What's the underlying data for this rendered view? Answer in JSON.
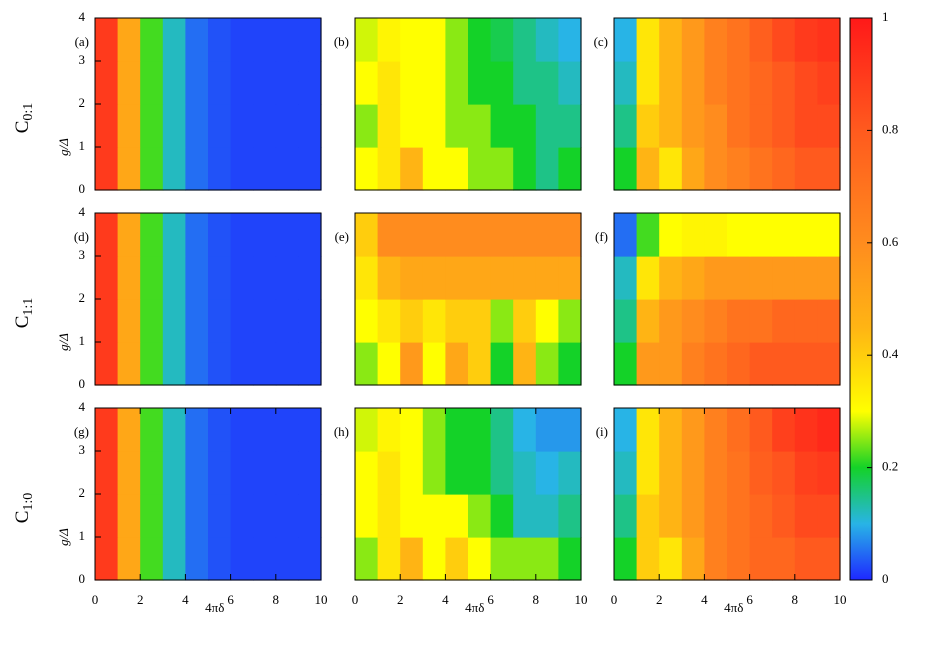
{
  "chart_data": [
    {
      "type": "heatmap",
      "panel_label": "(a)",
      "xlim": [
        0,
        10
      ],
      "ylim": [
        0,
        4
      ],
      "yticks": [
        0,
        1,
        2,
        3,
        4
      ],
      "ylabel": "g/Δ",
      "x": [
        0.5,
        1.5,
        2.5,
        3.5,
        4.5,
        5.5,
        6.5,
        7.5,
        8.5,
        9.5
      ],
      "y": [
        0.5,
        1.5,
        2.5,
        3.5
      ],
      "z": [
        [
          0.9,
          0.5,
          0.22,
          0.12,
          0.05,
          0.03,
          0.02,
          0.02,
          0.02,
          0.02
        ],
        [
          0.9,
          0.5,
          0.22,
          0.12,
          0.05,
          0.03,
          0.02,
          0.02,
          0.02,
          0.02
        ],
        [
          0.9,
          0.5,
          0.22,
          0.12,
          0.05,
          0.03,
          0.02,
          0.02,
          0.02,
          0.02
        ],
        [
          0.9,
          0.5,
          0.22,
          0.12,
          0.05,
          0.03,
          0.02,
          0.02,
          0.02,
          0.02
        ]
      ]
    },
    {
      "type": "heatmap",
      "panel_label": "(b)",
      "xlim": [
        0,
        10
      ],
      "ylim": [
        0,
        4
      ],
      "x": [
        0.5,
        1.5,
        2.5,
        3.5,
        4.5,
        5.5,
        6.5,
        7.5,
        8.5,
        9.5
      ],
      "y": [
        0.5,
        1.5,
        2.5,
        3.5
      ],
      "z": [
        [
          0.3,
          0.35,
          0.45,
          0.3,
          0.3,
          0.25,
          0.25,
          0.2,
          0.15,
          0.2
        ],
        [
          0.25,
          0.35,
          0.3,
          0.3,
          0.25,
          0.25,
          0.2,
          0.2,
          0.15,
          0.15
        ],
        [
          0.3,
          0.35,
          0.3,
          0.3,
          0.25,
          0.2,
          0.2,
          0.15,
          0.15,
          0.12
        ],
        [
          0.28,
          0.32,
          0.3,
          0.3,
          0.25,
          0.2,
          0.18,
          0.15,
          0.12,
          0.1
        ]
      ]
    },
    {
      "type": "heatmap",
      "panel_label": "(c)",
      "xlim": [
        0,
        10
      ],
      "ylim": [
        0,
        4
      ],
      "x": [
        0.5,
        1.5,
        2.5,
        3.5,
        4.5,
        5.5,
        6.5,
        7.5,
        8.5,
        9.5
      ],
      "y": [
        0.5,
        1.5,
        2.5,
        3.5
      ],
      "z": [
        [
          0.2,
          0.45,
          0.35,
          0.5,
          0.6,
          0.65,
          0.7,
          0.75,
          0.8,
          0.8
        ],
        [
          0.15,
          0.4,
          0.45,
          0.55,
          0.6,
          0.7,
          0.75,
          0.8,
          0.85,
          0.85
        ],
        [
          0.12,
          0.35,
          0.45,
          0.55,
          0.65,
          0.7,
          0.75,
          0.8,
          0.85,
          0.88
        ],
        [
          0.1,
          0.35,
          0.45,
          0.55,
          0.65,
          0.7,
          0.78,
          0.85,
          0.9,
          0.92
        ]
      ]
    },
    {
      "type": "heatmap",
      "panel_label": "(d)",
      "xlim": [
        0,
        10
      ],
      "ylim": [
        0,
        4
      ],
      "yticks": [
        0,
        1,
        2,
        3,
        4
      ],
      "ylabel": "g/Δ",
      "x": [
        0.5,
        1.5,
        2.5,
        3.5,
        4.5,
        5.5,
        6.5,
        7.5,
        8.5,
        9.5
      ],
      "y": [
        0.5,
        1.5,
        2.5,
        3.5
      ],
      "z": [
        [
          0.9,
          0.5,
          0.22,
          0.12,
          0.05,
          0.03,
          0.02,
          0.02,
          0.02,
          0.02
        ],
        [
          0.9,
          0.5,
          0.22,
          0.12,
          0.05,
          0.03,
          0.02,
          0.02,
          0.02,
          0.02
        ],
        [
          0.9,
          0.5,
          0.22,
          0.12,
          0.05,
          0.03,
          0.02,
          0.02,
          0.02,
          0.02
        ],
        [
          0.9,
          0.5,
          0.22,
          0.12,
          0.05,
          0.03,
          0.02,
          0.02,
          0.02,
          0.02
        ]
      ]
    },
    {
      "type": "heatmap",
      "panel_label": "(e)",
      "xlim": [
        0,
        10
      ],
      "ylim": [
        0,
        4
      ],
      "x": [
        0.5,
        1.5,
        2.5,
        3.5,
        4.5,
        5.5,
        6.5,
        7.5,
        8.5,
        9.5
      ],
      "y": [
        0.5,
        1.5,
        2.5,
        3.5
      ],
      "z": [
        [
          0.25,
          0.3,
          0.55,
          0.3,
          0.5,
          0.4,
          0.2,
          0.45,
          0.25,
          0.2
        ],
        [
          0.3,
          0.35,
          0.4,
          0.35,
          0.4,
          0.4,
          0.25,
          0.4,
          0.3,
          0.25
        ],
        [
          0.35,
          0.45,
          0.5,
          0.5,
          0.5,
          0.5,
          0.5,
          0.5,
          0.5,
          0.5
        ],
        [
          0.4,
          0.6,
          0.6,
          0.6,
          0.6,
          0.6,
          0.6,
          0.6,
          0.6,
          0.6
        ]
      ]
    },
    {
      "type": "heatmap",
      "panel_label": "(f)",
      "xlim": [
        0,
        10
      ],
      "ylim": [
        0,
        4
      ],
      "x": [
        0.5,
        1.5,
        2.5,
        3.5,
        4.5,
        5.5,
        6.5,
        7.5,
        8.5,
        9.5
      ],
      "y": [
        0.5,
        1.5,
        2.5,
        3.5
      ],
      "z": [
        [
          0.2,
          0.55,
          0.55,
          0.65,
          0.7,
          0.75,
          0.8,
          0.8,
          0.8,
          0.8
        ],
        [
          0.15,
          0.45,
          0.55,
          0.6,
          0.65,
          0.7,
          0.7,
          0.75,
          0.75,
          0.75
        ],
        [
          0.12,
          0.35,
          0.45,
          0.5,
          0.55,
          0.55,
          0.55,
          0.55,
          0.55,
          0.55
        ],
        [
          0.05,
          0.22,
          0.3,
          0.32,
          0.32,
          0.3,
          0.3,
          0.3,
          0.3,
          0.3
        ]
      ]
    },
    {
      "type": "heatmap",
      "panel_label": "(g)",
      "xlim": [
        0,
        10
      ],
      "ylim": [
        0,
        4
      ],
      "xticks": [
        0,
        2,
        4,
        6,
        8,
        10
      ],
      "yticks": [
        0,
        1,
        2,
        3,
        4
      ],
      "xlabel": "4πδ",
      "ylabel": "g/Δ",
      "x": [
        0.5,
        1.5,
        2.5,
        3.5,
        4.5,
        5.5,
        6.5,
        7.5,
        8.5,
        9.5
      ],
      "y": [
        0.5,
        1.5,
        2.5,
        3.5
      ],
      "z": [
        [
          0.9,
          0.5,
          0.22,
          0.12,
          0.05,
          0.03,
          0.02,
          0.02,
          0.02,
          0.02
        ],
        [
          0.9,
          0.5,
          0.22,
          0.12,
          0.05,
          0.03,
          0.02,
          0.02,
          0.02,
          0.02
        ],
        [
          0.9,
          0.5,
          0.22,
          0.12,
          0.05,
          0.03,
          0.02,
          0.02,
          0.02,
          0.02
        ],
        [
          0.9,
          0.5,
          0.22,
          0.12,
          0.05,
          0.03,
          0.02,
          0.02,
          0.02,
          0.02
        ]
      ]
    },
    {
      "type": "heatmap",
      "panel_label": "(h)",
      "xlim": [
        0,
        10
      ],
      "ylim": [
        0,
        4
      ],
      "xticks": [
        0,
        2,
        4,
        6,
        8,
        10
      ],
      "xlabel": "4πδ",
      "x": [
        0.5,
        1.5,
        2.5,
        3.5,
        4.5,
        5.5,
        6.5,
        7.5,
        8.5,
        9.5
      ],
      "y": [
        0.5,
        1.5,
        2.5,
        3.5
      ],
      "z": [
        [
          0.25,
          0.35,
          0.45,
          0.3,
          0.4,
          0.3,
          0.25,
          0.25,
          0.25,
          0.2
        ],
        [
          0.3,
          0.35,
          0.3,
          0.3,
          0.3,
          0.25,
          0.2,
          0.12,
          0.12,
          0.15
        ],
        [
          0.3,
          0.35,
          0.3,
          0.25,
          0.2,
          0.2,
          0.15,
          0.12,
          0.1,
          0.12
        ],
        [
          0.28,
          0.32,
          0.3,
          0.25,
          0.2,
          0.2,
          0.15,
          0.1,
          0.08,
          0.08
        ]
      ]
    },
    {
      "type": "heatmap",
      "panel_label": "(i)",
      "xlim": [
        0,
        10
      ],
      "ylim": [
        0,
        4
      ],
      "xticks": [
        0,
        2,
        4,
        6,
        8,
        10
      ],
      "xlabel": "4πδ",
      "x": [
        0.5,
        1.5,
        2.5,
        3.5,
        4.5,
        5.5,
        6.5,
        7.5,
        8.5,
        9.5
      ],
      "y": [
        0.5,
        1.5,
        2.5,
        3.5
      ],
      "z": [
        [
          0.2,
          0.4,
          0.35,
          0.5,
          0.65,
          0.7,
          0.75,
          0.75,
          0.8,
          0.8
        ],
        [
          0.15,
          0.4,
          0.45,
          0.55,
          0.65,
          0.7,
          0.75,
          0.8,
          0.85,
          0.85
        ],
        [
          0.12,
          0.35,
          0.45,
          0.55,
          0.65,
          0.7,
          0.78,
          0.82,
          0.88,
          0.9
        ],
        [
          0.1,
          0.35,
          0.45,
          0.55,
          0.65,
          0.72,
          0.8,
          0.88,
          0.92,
          0.95
        ]
      ]
    }
  ],
  "row_labels": [
    {
      "main": "C",
      "sub": "0:1"
    },
    {
      "main": "C",
      "sub": "1:1"
    },
    {
      "main": "C",
      "sub": "1:0"
    }
  ],
  "colorbar": {
    "lim": [
      0,
      1
    ],
    "ticks": [
      0,
      0.2,
      0.4,
      0.6,
      0.8,
      1
    ]
  }
}
